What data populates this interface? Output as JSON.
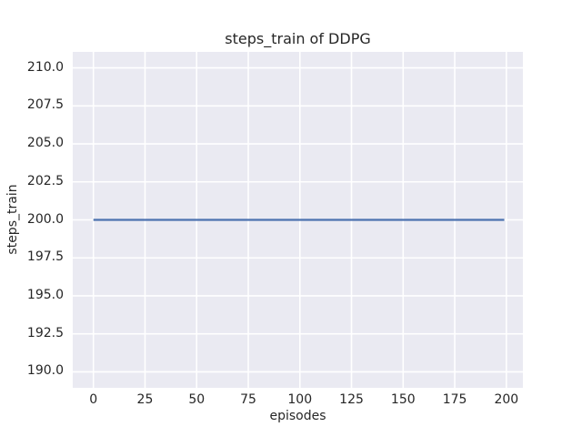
{
  "chart_data": {
    "type": "line",
    "title": "steps_train of DDPG",
    "xlabel": "episodes",
    "ylabel": "steps_train",
    "style": "seaborn-darkgrid",
    "plot_bg_color": "#eaeaf2",
    "grid_color": "#ffffff",
    "text_color": "#262626",
    "grid": true,
    "legend_position": "none",
    "xlim": [
      -10,
      208
    ],
    "ylim": [
      188.95,
      211.05
    ],
    "x_ticks": [
      0,
      25,
      50,
      75,
      100,
      125,
      150,
      175,
      200
    ],
    "x_tick_labels": [
      "0",
      "25",
      "50",
      "75",
      "100",
      "125",
      "150",
      "175",
      "200"
    ],
    "y_ticks": [
      190.0,
      192.5,
      195.0,
      197.5,
      200.0,
      202.5,
      205.0,
      207.5,
      210.0
    ],
    "y_tick_labels": [
      "190.0",
      "192.5",
      "195.0",
      "197.5",
      "200.0",
      "202.5",
      "205.0",
      "207.5",
      "210.0"
    ],
    "series": [
      {
        "name": "steps_train",
        "color": "#4c72b0",
        "line_width": 2.2,
        "x": [
          0,
          199
        ],
        "y": [
          200,
          200
        ],
        "description": "constant value 200 steps per episode across episodes 0-199"
      }
    ]
  }
}
